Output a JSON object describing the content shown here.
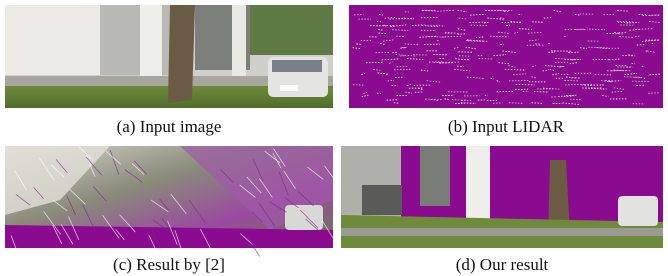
{
  "figures": [
    {
      "caption": "(a) Input image"
    },
    {
      "caption": "(b) Input LIDAR"
    },
    {
      "caption": "(c) Result by [2]"
    },
    {
      "caption": "(d) Our result"
    }
  ]
}
